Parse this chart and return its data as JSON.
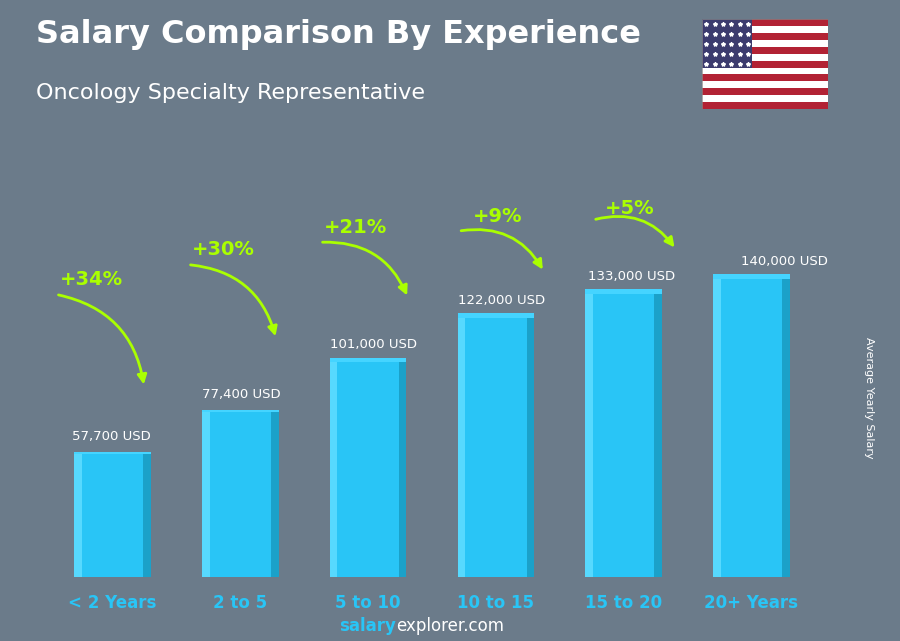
{
  "title": "Salary Comparison By Experience",
  "subtitle": "Oncology Specialty Representative",
  "categories": [
    "< 2 Years",
    "2 to 5",
    "5 to 10",
    "10 to 15",
    "15 to 20",
    "20+ Years"
  ],
  "values": [
    57700,
    77400,
    101000,
    122000,
    133000,
    140000
  ],
  "labels": [
    "57,700 USD",
    "77,400 USD",
    "101,000 USD",
    "122,000 USD",
    "133,000 USD",
    "140,000 USD"
  ],
  "pct_changes": [
    "+34%",
    "+30%",
    "+21%",
    "+9%",
    "+5%"
  ],
  "bar_color_main": "#29c5f6",
  "bar_color_left": "#5ddcff",
  "bar_color_right": "#1a9ec5",
  "bar_color_top": "#45d4ff",
  "bg_color": "#6b7b8a",
  "title_color": "#ffffff",
  "subtitle_color": "#ffffff",
  "label_color": "#ffffff",
  "pct_color": "#aaff00",
  "cat_color": "#29c5f6",
  "ylabel_text": "Average Yearly Salary",
  "footer_salary": "salary",
  "footer_rest": "explorer.com",
  "footer_color": "#29c5f6",
  "ylim": [
    0,
    175000
  ],
  "bar_width": 0.6,
  "figsize": [
    9.0,
    6.41
  ],
  "dpi": 100
}
